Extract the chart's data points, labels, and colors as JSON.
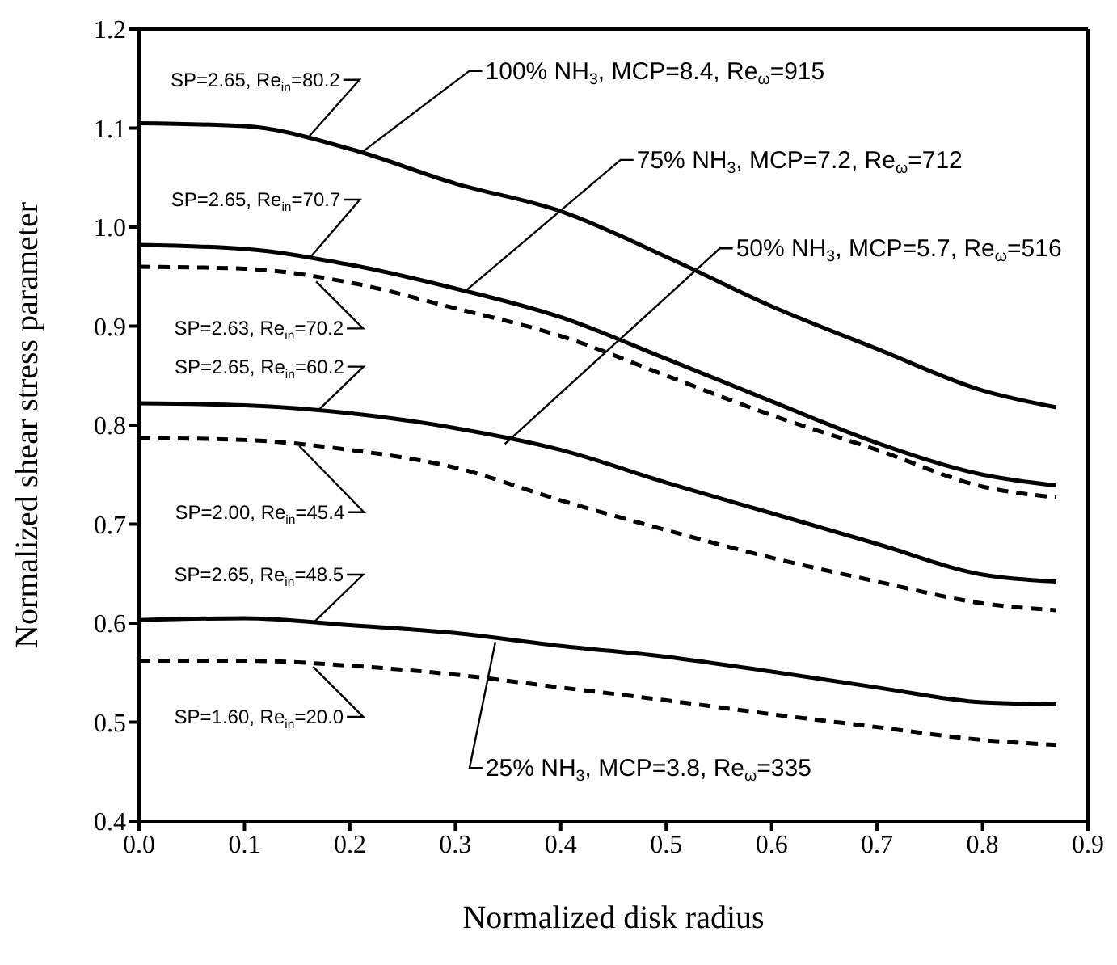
{
  "chart_data": {
    "type": "line",
    "xlabel": "Normalized disk radius",
    "ylabel": "Normalized shear stress parameter",
    "x": [
      0,
      0.1,
      0.2,
      0.3,
      0.4,
      0.5,
      0.6,
      0.7,
      0.8,
      0.87
    ],
    "xlim": [
      0,
      0.9
    ],
    "xticks": [
      {
        "value": 0,
        "label": "0.0"
      },
      0.1,
      0.2,
      0.3,
      0.4,
      0.5,
      0.6,
      0.7,
      0.8,
      0.9
    ],
    "ylim": [
      0.4,
      1.2
    ],
    "yticks": [
      0.4,
      0.5,
      0.6,
      0.7,
      0.8,
      0.9,
      {
        "value": 1,
        "label": "1.0"
      },
      1.1,
      1.2
    ],
    "marker": "none",
    "series": [
      {
        "color": "#000000",
        "line_style": "solid",
        "values": [
          1.105,
          1.102,
          1.079,
          1.044,
          1.016,
          0.97,
          0.92,
          0.877,
          0.835,
          0.818
        ]
      },
      {
        "color": "#000000",
        "line_style": "solid",
        "values": [
          0.982,
          0.978,
          0.962,
          0.938,
          0.909,
          0.867,
          0.824,
          0.782,
          0.75,
          0.739
        ]
      },
      {
        "color": "#000000",
        "line_style": "dashed",
        "values": [
          0.96,
          0.958,
          0.944,
          0.918,
          0.89,
          0.85,
          0.81,
          0.775,
          0.738,
          0.727
        ]
      },
      {
        "color": "#000000",
        "line_style": "solid",
        "values": [
          0.822,
          0.82,
          0.812,
          0.797,
          0.775,
          0.742,
          0.711,
          0.68,
          0.649,
          0.642
        ]
      },
      {
        "color": "#000000",
        "line_style": "dashed",
        "values": [
          0.787,
          0.785,
          0.775,
          0.757,
          0.724,
          0.694,
          0.666,
          0.642,
          0.62,
          0.613
        ]
      },
      {
        "color": "#000000",
        "line_style": "solid",
        "values": [
          0.603,
          0.605,
          0.598,
          0.59,
          0.577,
          0.566,
          0.551,
          0.535,
          0.52,
          0.518
        ]
      },
      {
        "color": "#000000",
        "line_style": "dashed",
        "values": [
          0.562,
          0.562,
          0.557,
          0.548,
          0.535,
          0.522,
          0.508,
          0.495,
          0.482,
          0.477
        ]
      }
    ],
    "annotations": [
      {
        "text": "SP=2.65, Re$_{in}$=80.2",
        "x": 0.16,
        "y": 1.09
      },
      {
        "text": "SP=2.65, Re$_{in}$=70.7",
        "x": 0.162,
        "y": 0.969
      },
      {
        "text": "SP=2.63, Re$_{in}$=70.2",
        "x": 0.168,
        "y": 0.945
      },
      {
        "text": "SP=2.65, Re$_{in}$=60.2",
        "x": 0.17,
        "y": 0.815
      },
      {
        "text": "SP=2.00, Re$_{in}$=45.4",
        "x": 0.152,
        "y": 0.779
      },
      {
        "text": "SP=2.65, Re$_{in}$=48.5",
        "x": 0.165,
        "y": 0.6
      },
      {
        "text": "SP=1.60, Re$_{in}$=20.0",
        "x": 0.165,
        "y": 0.556
      },
      {
        "text": "100% NH$_{3}$, MCP=8.4, Re$_{ω}$=915",
        "x": 0.212,
        "y": 1.076
      },
      {
        "text": "75% NH$_{3}$, MCP=7.2, Re$_{ω}$=712",
        "x": 0.308,
        "y": 0.934
      },
      {
        "text": "50% NH$_{3}$, MCP=5.7, Re$_{ω}$=516",
        "x": 0.347,
        "y": 0.781
      },
      {
        "text": "25% NH$_{3}$, MCP=3.8, Re$_{ω}$=335",
        "x": 0.338,
        "y": 0.581
      }
    ]
  }
}
